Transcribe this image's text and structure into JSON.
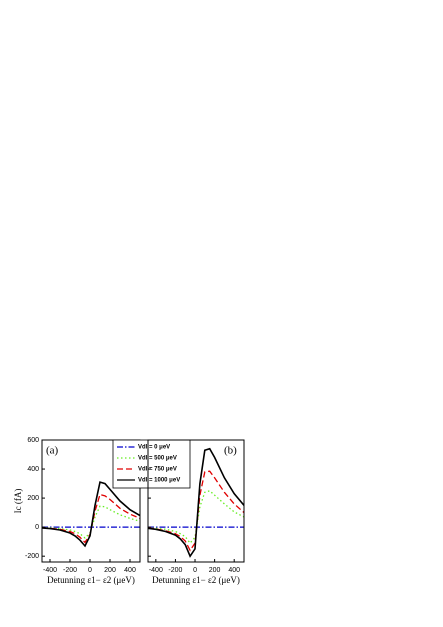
{
  "chart_data": [
    {
      "type": "line",
      "panel_label": "(a)",
      "y_label": "Ic (fA)",
      "x_label": "Detunning ε1− ε2 (μeV)",
      "x": [
        -480,
        -400,
        -300,
        -200,
        -150,
        -100,
        -50,
        0,
        50,
        100,
        150,
        200,
        300,
        400,
        500
      ],
      "xlim": [
        -480,
        500
      ],
      "xticks": [
        -400,
        -200,
        0,
        200,
        400
      ],
      "ylim": [
        -240,
        600
      ],
      "yticks": [
        -200,
        0,
        200,
        400,
        600
      ],
      "series": [
        {
          "name": "Vdl = 0 μeV",
          "color": "#0000cc",
          "dash": "6 2 1.5 2",
          "values": [
            0,
            0,
            0,
            0,
            0,
            0,
            0,
            0,
            0,
            0,
            0,
            0,
            0,
            0,
            0
          ]
        },
        {
          "name": "Vdl = 500 μeV",
          "color": "#66ee22",
          "dash": "1.5 2.5",
          "values": [
            -3,
            -5,
            -10,
            -20,
            -30,
            -45,
            -75,
            -40,
            70,
            145,
            140,
            120,
            85,
            60,
            40
          ]
        },
        {
          "name": "Vdl = 750 μeV",
          "color": "#e00000",
          "dash": "6 3",
          "values": [
            -5,
            -8,
            -15,
            -30,
            -45,
            -70,
            -105,
            -50,
            110,
            225,
            215,
            190,
            130,
            90,
            60
          ]
        },
        {
          "name": "Vdl = 1000 μeV",
          "color": "#000000",
          "dash": "none",
          "values": [
            -5,
            -10,
            -20,
            -40,
            -60,
            -90,
            -130,
            -60,
            150,
            310,
            300,
            260,
            180,
            120,
            80
          ]
        }
      ]
    },
    {
      "type": "line",
      "panel_label": "(b)",
      "x_label": "Detunning ε1− ε2 (μeV)",
      "x": [
        -480,
        -400,
        -300,
        -200,
        -150,
        -100,
        -50,
        0,
        50,
        100,
        150,
        200,
        300,
        400,
        500
      ],
      "xlim": [
        -480,
        500
      ],
      "xticks": [
        -400,
        -200,
        0,
        200,
        400
      ],
      "ylim": [
        -240,
        600
      ],
      "yticks": [
        -200,
        0,
        200,
        400,
        600
      ],
      "series": [
        {
          "color": "#0000cc",
          "dash": "6 2 1.5 2",
          "values": [
            0,
            0,
            0,
            0,
            0,
            0,
            0,
            0,
            0,
            0,
            0,
            0,
            0,
            0,
            0
          ]
        },
        {
          "color": "#66ee22",
          "dash": "1.5 2.5",
          "values": [
            -4,
            -8,
            -15,
            -30,
            -45,
            -65,
            -110,
            -70,
            140,
            240,
            250,
            220,
            160,
            105,
            70
          ]
        },
        {
          "color": "#e00000",
          "dash": "6 3",
          "values": [
            -6,
            -12,
            -25,
            -45,
            -65,
            -95,
            -160,
            -110,
            220,
            380,
            385,
            340,
            240,
            160,
            100
          ]
        },
        {
          "color": "#000000",
          "dash": "none",
          "values": [
            -8,
            -15,
            -30,
            -55,
            -80,
            -120,
            -200,
            -150,
            300,
            530,
            540,
            480,
            340,
            230,
            150
          ]
        }
      ]
    }
  ]
}
